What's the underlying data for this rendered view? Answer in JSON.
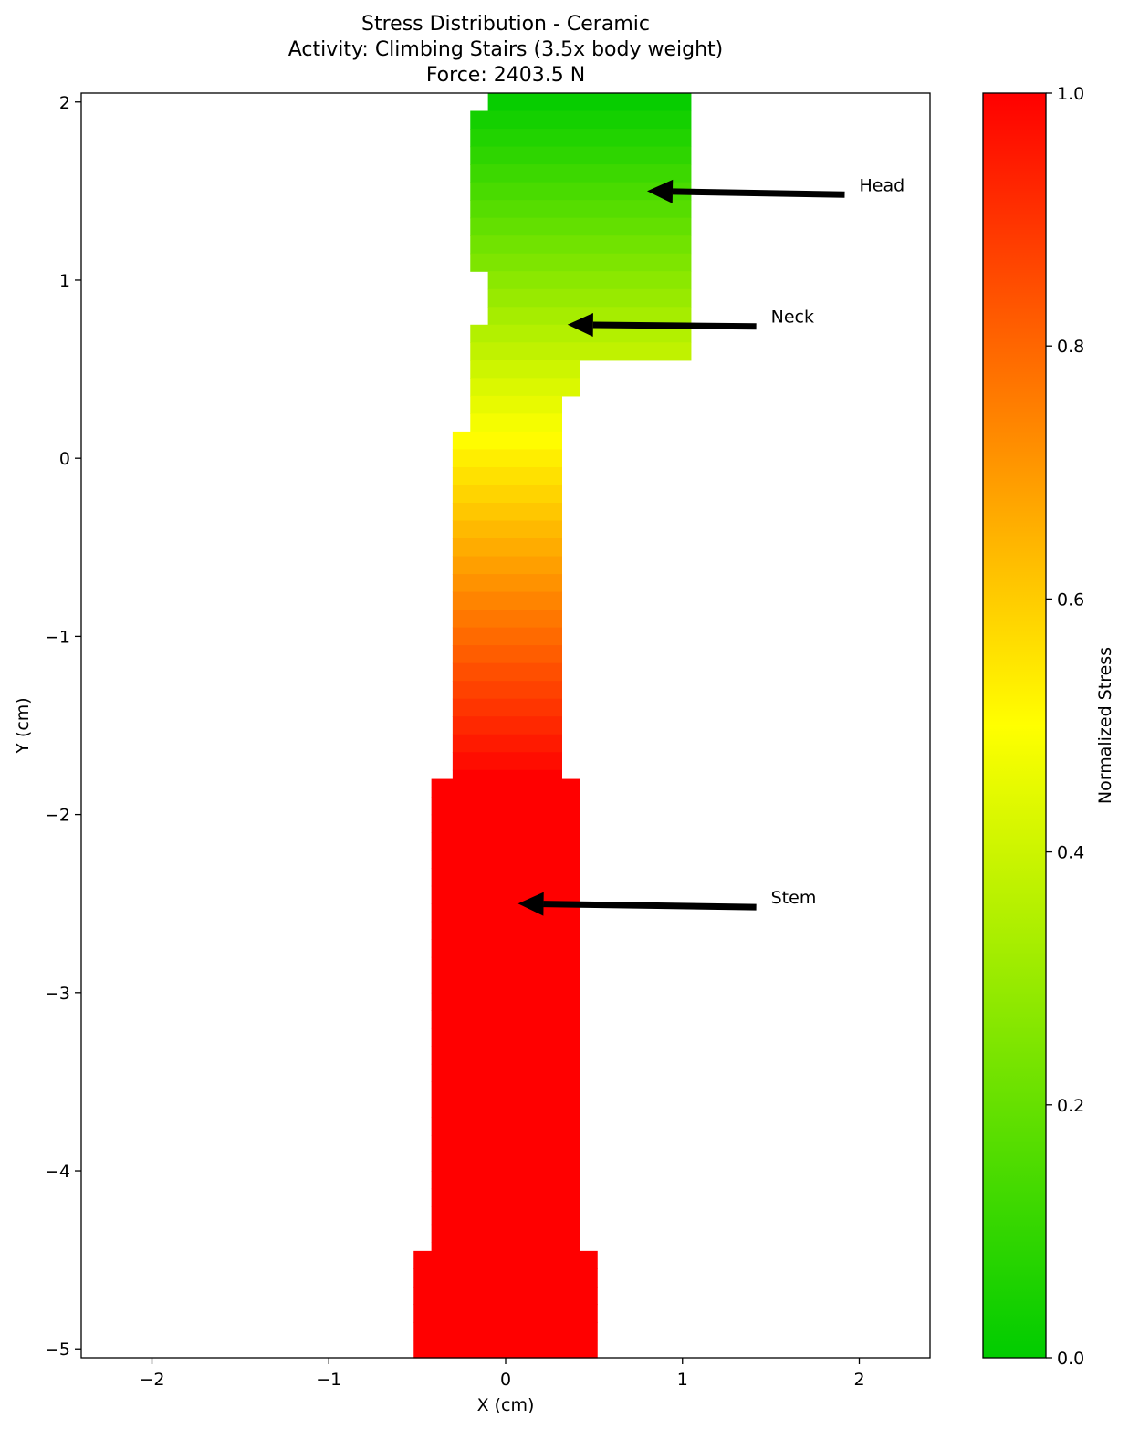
{
  "chart_data": {
    "type": "heatmap",
    "title": [
      "Stress Distribution - Ceramic",
      "Activity: Climbing Stairs (3.5x body weight)",
      "Force: 2403.5 N"
    ],
    "xlabel": "X (cm)",
    "ylabel": "Y (cm)",
    "xlim": [
      -2.4,
      2.4
    ],
    "ylim": [
      -5.05,
      2.05
    ],
    "xticks": [
      -2,
      -1,
      0,
      1,
      2
    ],
    "yticks": [
      -5,
      -4,
      -3,
      -2,
      -1,
      0,
      1,
      2
    ],
    "colorbar": {
      "label": "Normalized Stress",
      "range": [
        0,
        1
      ],
      "ticks": [
        0.0,
        0.2,
        0.4,
        0.6,
        0.8,
        1.0
      ],
      "tick_labels": [
        "0.0",
        "0.2",
        "0.4",
        "0.6",
        "0.8",
        "1.0"
      ],
      "colors": [
        "#00cc00",
        "#ffff00",
        "#ff0000"
      ]
    },
    "cell_height_cm": 0.1,
    "regions": [
      {
        "y_range": [
          1.95,
          2.05
        ],
        "x_range": [
          -0.1,
          1.05
        ]
      },
      {
        "y_range": [
          1.05,
          1.95
        ],
        "x_range": [
          -0.2,
          1.05
        ]
      },
      {
        "y_range": [
          0.75,
          1.05
        ],
        "x_range": [
          -0.1,
          1.05
        ]
      },
      {
        "y_range": [
          0.55,
          0.75
        ],
        "x_range": [
          -0.2,
          1.05
        ]
      },
      {
        "y_range": [
          0.35,
          0.55
        ],
        "x_range": [
          -0.2,
          0.42
        ]
      },
      {
        "y_range": [
          0.15,
          0.35
        ],
        "x_range": [
          -0.2,
          0.32
        ]
      },
      {
        "y_range": [
          -1.8,
          0.15
        ],
        "x_range": [
          -0.3,
          0.32
        ]
      },
      {
        "y_range": [
          -4.45,
          -1.8
        ],
        "x_range": [
          -0.42,
          0.42
        ]
      },
      {
        "y_range": [
          -5.05,
          -4.45
        ],
        "x_range": [
          -0.52,
          0.52
        ]
      }
    ],
    "stress_profile": {
      "y_top": 2.05,
      "stress_at_top": 0.0,
      "y_full": -1.8,
      "stress_at_full": 1.0
    },
    "annotations": [
      {
        "text": "Head",
        "text_xy": [
          2.0,
          1.48
        ],
        "arrow_tip": [
          0.8,
          1.5
        ]
      },
      {
        "text": "Neck",
        "text_xy": [
          1.5,
          0.74
        ],
        "arrow_tip": [
          0.35,
          0.75
        ]
      },
      {
        "text": "Stem",
        "text_xy": [
          1.5,
          -2.52
        ],
        "arrow_tip": [
          0.07,
          -2.5
        ]
      }
    ]
  }
}
